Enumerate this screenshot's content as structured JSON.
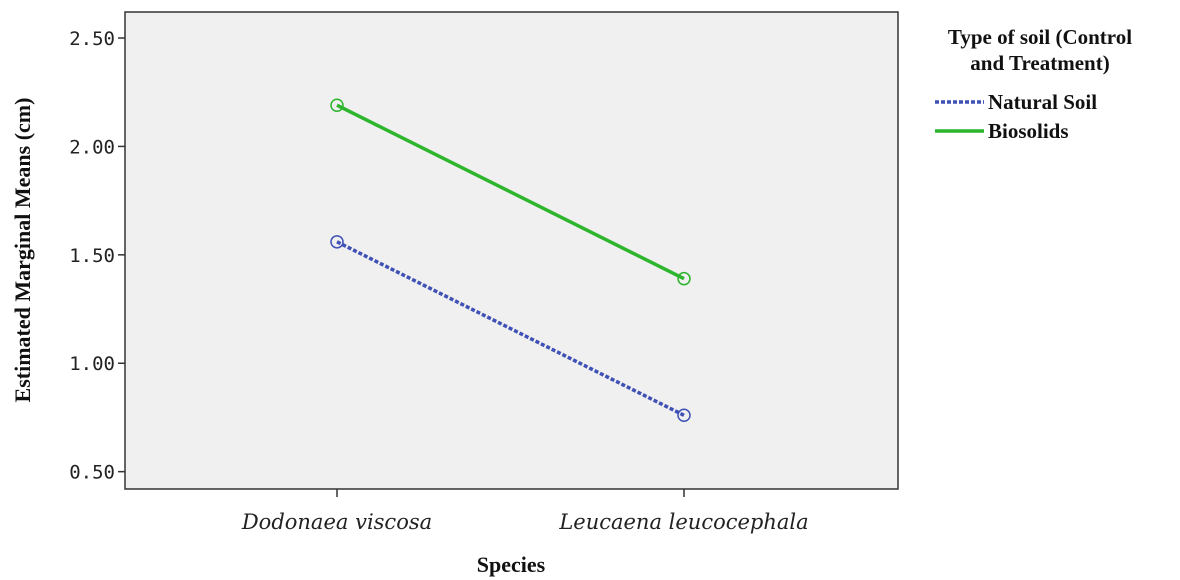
{
  "chart_data": {
    "type": "line",
    "categories": [
      "Dodonaea viscosa",
      "Leucaena leucocephala"
    ],
    "series": [
      {
        "name": "Natural Soil",
        "values": [
          1.56,
          0.76
        ],
        "color": "#3f51b5",
        "dash": "dotted"
      },
      {
        "name": "Biosolids",
        "values": [
          2.19,
          1.39
        ],
        "color": "#2db52d",
        "dash": "solid"
      }
    ],
    "title": "",
    "xlabel": "Species",
    "ylabel": "Estimated Marginal Means (cm)",
    "ylim": [
      0.42,
      2.62
    ],
    "yticks": [
      "0.50",
      "1.00",
      "1.50",
      "2.00",
      "2.50"
    ],
    "grid": false,
    "plot_background": "#f0f0f0",
    "legend": {
      "title_line1": "Type of soil (Control",
      "title_line2": "and Treatment)",
      "placement": "right"
    }
  }
}
